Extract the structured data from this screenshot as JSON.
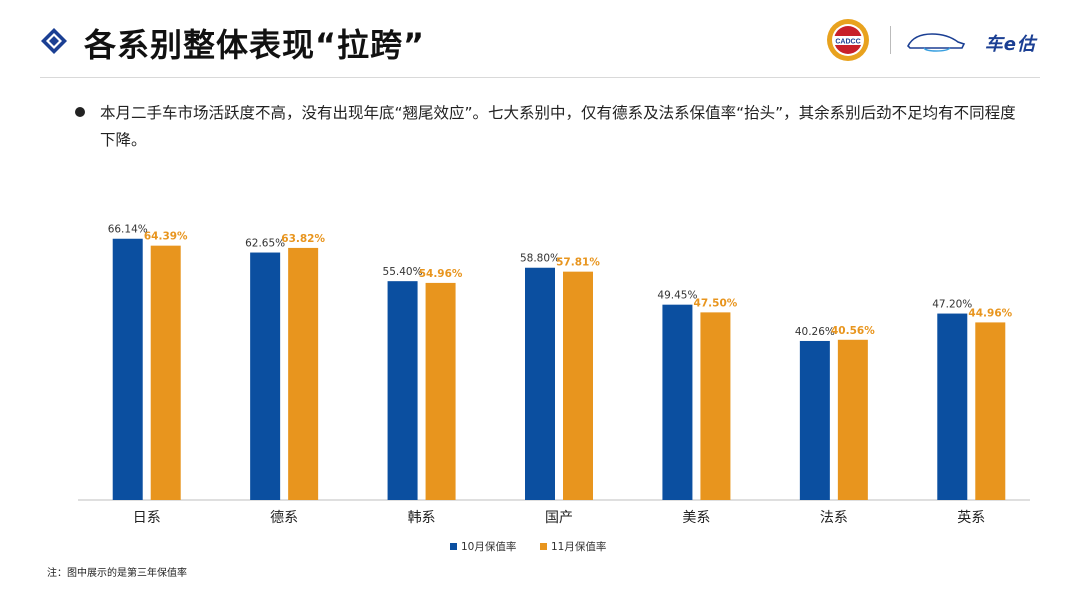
{
  "header": {
    "title": "各系别整体表现“拉跨”",
    "logos": [
      {
        "name": "cadcc-logo",
        "text": "CADCC"
      },
      {
        "name": "che-e-gu-logo",
        "text": "车e估"
      }
    ]
  },
  "summary": "本月二手车市场活跃度不高，没有出现年底“翘尾效应”。七大系别中，仅有德系及法系保值率“抬头”，其余系别后劲不足均有不同程度下降。",
  "chart_data": {
    "type": "bar",
    "categories": [
      "日系",
      "德系",
      "韩系",
      "国产",
      "美系",
      "法系",
      "英系"
    ],
    "series": [
      {
        "name": "10月保值率",
        "color": "#0b4fa0",
        "label_color": "#333333",
        "values": [
          66.14,
          62.65,
          55.4,
          58.8,
          49.45,
          40.26,
          47.2
        ],
        "labels": [
          "66.14%",
          "62.65%",
          "55.40%",
          "58.80%",
          "49.45%",
          "40.26%",
          "47.20%"
        ]
      },
      {
        "name": "11月保值率",
        "color": "#e8951e",
        "label_color": "#e8951e",
        "values": [
          64.39,
          63.82,
          54.96,
          57.81,
          47.5,
          40.56,
          44.96
        ],
        "labels": [
          "64.39%",
          "63.82%",
          "54.96%",
          "57.81%",
          "47.50%",
          "40.56%",
          "44.96%"
        ]
      }
    ],
    "ylim": [
      0,
      70
    ],
    "legend": "bottom-center",
    "grid": false,
    "xlabel": "",
    "ylabel": ""
  },
  "note": "注：图中展示的是第三年保值率"
}
